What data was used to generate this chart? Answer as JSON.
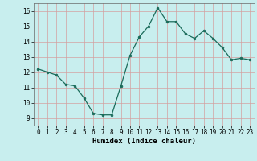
{
  "x": [
    0,
    1,
    2,
    3,
    4,
    5,
    6,
    7,
    8,
    9,
    10,
    11,
    12,
    13,
    14,
    15,
    16,
    17,
    18,
    19,
    20,
    21,
    22,
    23
  ],
  "y": [
    12.2,
    12.0,
    11.8,
    11.2,
    11.1,
    10.3,
    9.3,
    9.2,
    9.2,
    11.1,
    13.1,
    14.3,
    15.0,
    16.2,
    15.3,
    15.3,
    14.5,
    14.2,
    14.7,
    14.2,
    13.6,
    12.8,
    12.9,
    12.8
  ],
  "xlabel": "Humidex (Indice chaleur)",
  "bg_color": "#c8eeee",
  "grid_color": "#d4a0a0",
  "line_color": "#1a6b5a",
  "marker_color": "#1a6b5a",
  "xlim": [
    -0.5,
    23.5
  ],
  "ylim": [
    8.5,
    16.5
  ],
  "yticks": [
    9,
    10,
    11,
    12,
    13,
    14,
    15,
    16
  ],
  "xticks": [
    0,
    1,
    2,
    3,
    4,
    5,
    6,
    7,
    8,
    9,
    10,
    11,
    12,
    13,
    14,
    15,
    16,
    17,
    18,
    19,
    20,
    21,
    22,
    23
  ]
}
